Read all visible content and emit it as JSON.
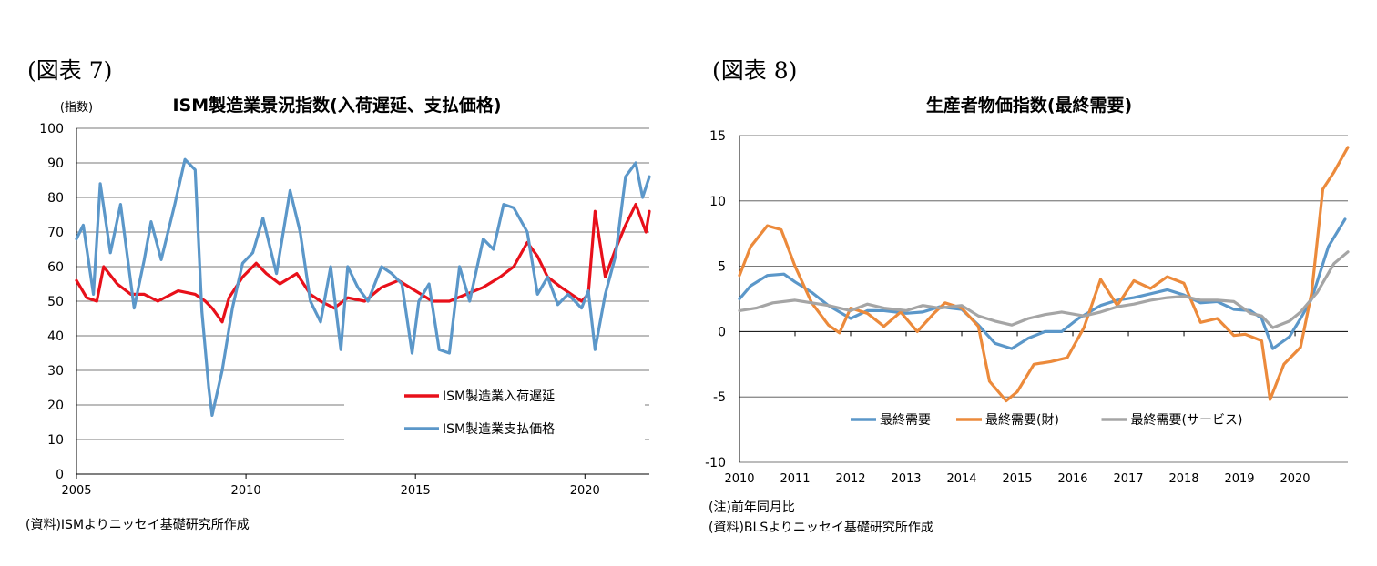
{
  "figures": [
    {
      "tag": "(図表 7)",
      "source": "(資料)ISMよりニッセイ基礎研究所作成"
    },
    {
      "tag": "(図表 8)",
      "note": "(注)前年同月比",
      "source": "(資料)BLSよりニッセイ基礎研究所作成"
    }
  ],
  "chart_data": [
    {
      "type": "line",
      "title": "ISM製造業景況指数(入荷遅延、支払価格)",
      "ylabel": "(指数)",
      "xlabel": "",
      "ylim": [
        0,
        100
      ],
      "yticks": [
        0,
        10,
        20,
        30,
        40,
        50,
        60,
        70,
        80,
        90,
        100
      ],
      "xlim": [
        2005,
        2021.9
      ],
      "xticks": [
        "2005",
        "2010",
        "2015",
        "2020"
      ],
      "grid": true,
      "legend": "bottom-right",
      "colors": [
        "#e8101a",
        "#5b97c9"
      ],
      "series": [
        {
          "name": "ISM製造業入荷遅延",
          "x": [
            2005,
            2005.3,
            2005.6,
            2005.8,
            2006.2,
            2006.6,
            2007.0,
            2007.4,
            2008.0,
            2008.5,
            2008.8,
            2009.0,
            2009.3,
            2009.5,
            2009.9,
            2010.3,
            2010.6,
            2011.0,
            2011.5,
            2011.9,
            2012.2,
            2012.6,
            2013.0,
            2013.5,
            2014.0,
            2014.5,
            2015.0,
            2015.5,
            2016.0,
            2016.5,
            2017.0,
            2017.5,
            2017.9,
            2018.3,
            2018.6,
            2018.9,
            2019.3,
            2019.6,
            2019.9,
            2020.1,
            2020.3,
            2020.6,
            2020.9,
            2021.2,
            2021.5,
            2021.8,
            2021.9
          ],
          "values": [
            56,
            51,
            50,
            60,
            55,
            52,
            52,
            50,
            53,
            52,
            50,
            48,
            44,
            51,
            57,
            61,
            58,
            55,
            58,
            52,
            50,
            48,
            51,
            50,
            54,
            56,
            53,
            50,
            50,
            52,
            54,
            57,
            60,
            67,
            63,
            57,
            54,
            52,
            50,
            52,
            76,
            57,
            65,
            72,
            78,
            70,
            76
          ]
        },
        {
          "name": "ISM製造業支払価格",
          "x": [
            2005,
            2005.2,
            2005.5,
            2005.7,
            2006.0,
            2006.3,
            2006.7,
            2007.0,
            2007.2,
            2007.5,
            2007.9,
            2008.2,
            2008.5,
            2008.7,
            2008.9,
            2009.0,
            2009.3,
            2009.6,
            2009.9,
            2010.2,
            2010.5,
            2010.9,
            2011.3,
            2011.6,
            2011.9,
            2012.2,
            2012.5,
            2012.8,
            2013.0,
            2013.3,
            2013.6,
            2014.0,
            2014.3,
            2014.6,
            2014.9,
            2015.1,
            2015.4,
            2015.7,
            2016.0,
            2016.3,
            2016.6,
            2017.0,
            2017.3,
            2017.6,
            2017.9,
            2018.3,
            2018.6,
            2018.9,
            2019.2,
            2019.5,
            2019.9,
            2020.1,
            2020.3,
            2020.6,
            2020.9,
            2021.2,
            2021.5,
            2021.7,
            2021.9
          ],
          "values": [
            68,
            72,
            52,
            84,
            64,
            78,
            48,
            62,
            73,
            62,
            78,
            91,
            88,
            47,
            25,
            17,
            30,
            48,
            61,
            64,
            74,
            58,
            82,
            70,
            50,
            44,
            60,
            36,
            60,
            54,
            50,
            60,
            58,
            55,
            35,
            50,
            55,
            36,
            35,
            60,
            50,
            68,
            65,
            78,
            77,
            70,
            52,
            57,
            49,
            52,
            48,
            53,
            36,
            52,
            63,
            86,
            90,
            80,
            86
          ]
        }
      ]
    },
    {
      "type": "line",
      "title": "生産者物価指数(最終需要)",
      "xlabel": "",
      "ylabel": "",
      "ylim": [
        -10,
        15
      ],
      "yticks": [
        -10,
        -5,
        0,
        5,
        10,
        15
      ],
      "xlim": [
        2010,
        2020.95
      ],
      "xticks": [
        "2010",
        "2011",
        "2012",
        "2013",
        "2014",
        "2015",
        "2016",
        "2017",
        "2018",
        "2019",
        "2020"
      ],
      "grid": true,
      "legend": "bottom-center",
      "colors": [
        "#5b97c9",
        "#ec8a3b",
        "#a5a5a5"
      ],
      "series": [
        {
          "name": "最終需要",
          "x": [
            2010,
            2010.2,
            2010.5,
            2010.8,
            2011.0,
            2011.3,
            2011.6,
            2012.0,
            2012.3,
            2012.6,
            2013.0,
            2013.3,
            2013.6,
            2014.0,
            2014.3,
            2014.6,
            2014.9,
            2015.2,
            2015.5,
            2015.8,
            2016.1,
            2016.5,
            2016.8,
            2017.1,
            2017.4,
            2017.7,
            2018.0,
            2018.3,
            2018.6,
            2018.9,
            2019.2,
            2019.4,
            2019.6,
            2019.9,
            2020.1,
            2020.3,
            2020.6,
            2020.9
          ],
          "values": [
            2.5,
            3.5,
            4.3,
            4.4,
            3.8,
            3.0,
            2.0,
            1.0,
            1.6,
            1.6,
            1.4,
            1.5,
            1.9,
            1.7,
            0.5,
            -0.9,
            -1.3,
            -0.5,
            0.0,
            0.0,
            1.0,
            2.0,
            2.4,
            2.6,
            2.9,
            3.2,
            2.8,
            2.2,
            2.3,
            1.7,
            1.6,
            1.0,
            -1.3,
            -0.4,
            1.0,
            2.5,
            6.5,
            8.6
          ]
        },
        {
          "name": "最終需要(財)",
          "x": [
            2010,
            2010.2,
            2010.5,
            2010.75,
            2011.0,
            2011.3,
            2011.6,
            2011.8,
            2012.0,
            2012.3,
            2012.6,
            2012.9,
            2013.2,
            2013.5,
            2013.7,
            2014.0,
            2014.3,
            2014.5,
            2014.8,
            2015.0,
            2015.3,
            2015.6,
            2015.9,
            2016.2,
            2016.5,
            2016.8,
            2017.1,
            2017.4,
            2017.7,
            2018.0,
            2018.3,
            2018.6,
            2018.9,
            2019.1,
            2019.4,
            2019.55,
            2019.8,
            2020.1,
            2020.3,
            2020.5,
            2020.7,
            2020.95
          ],
          "values": [
            4.3,
            6.5,
            8.1,
            7.8,
            5.0,
            2.2,
            0.5,
            -0.1,
            1.8,
            1.4,
            0.4,
            1.5,
            0.0,
            1.4,
            2.2,
            1.8,
            0.4,
            -3.8,
            -5.3,
            -4.6,
            -2.5,
            -2.3,
            -2.0,
            0.3,
            4.0,
            2.0,
            3.9,
            3.3,
            4.2,
            3.7,
            0.7,
            1.0,
            -0.3,
            -0.2,
            -0.7,
            -5.2,
            -2.5,
            -1.2,
            3.0,
            10.9,
            12.2,
            14.1
          ]
        },
        {
          "name": "最終需要(サービス)",
          "x": [
            2010,
            2010.3,
            2010.6,
            2011.0,
            2011.3,
            2011.6,
            2012.0,
            2012.3,
            2012.6,
            2013.0,
            2013.3,
            2013.6,
            2014.0,
            2014.3,
            2014.6,
            2014.9,
            2015.2,
            2015.5,
            2015.8,
            2016.2,
            2016.5,
            2016.8,
            2017.1,
            2017.4,
            2017.7,
            2018.0,
            2018.3,
            2018.6,
            2018.9,
            2019.2,
            2019.4,
            2019.6,
            2019.9,
            2020.1,
            2020.4,
            2020.7,
            2020.95
          ],
          "values": [
            1.6,
            1.8,
            2.2,
            2.4,
            2.2,
            2.0,
            1.6,
            2.1,
            1.8,
            1.6,
            2.0,
            1.8,
            2.0,
            1.2,
            0.8,
            0.5,
            1.0,
            1.3,
            1.5,
            1.2,
            1.5,
            1.9,
            2.1,
            2.4,
            2.6,
            2.7,
            2.4,
            2.4,
            2.3,
            1.4,
            1.2,
            0.3,
            0.8,
            1.5,
            3.0,
            5.2,
            6.1
          ]
        }
      ]
    }
  ]
}
